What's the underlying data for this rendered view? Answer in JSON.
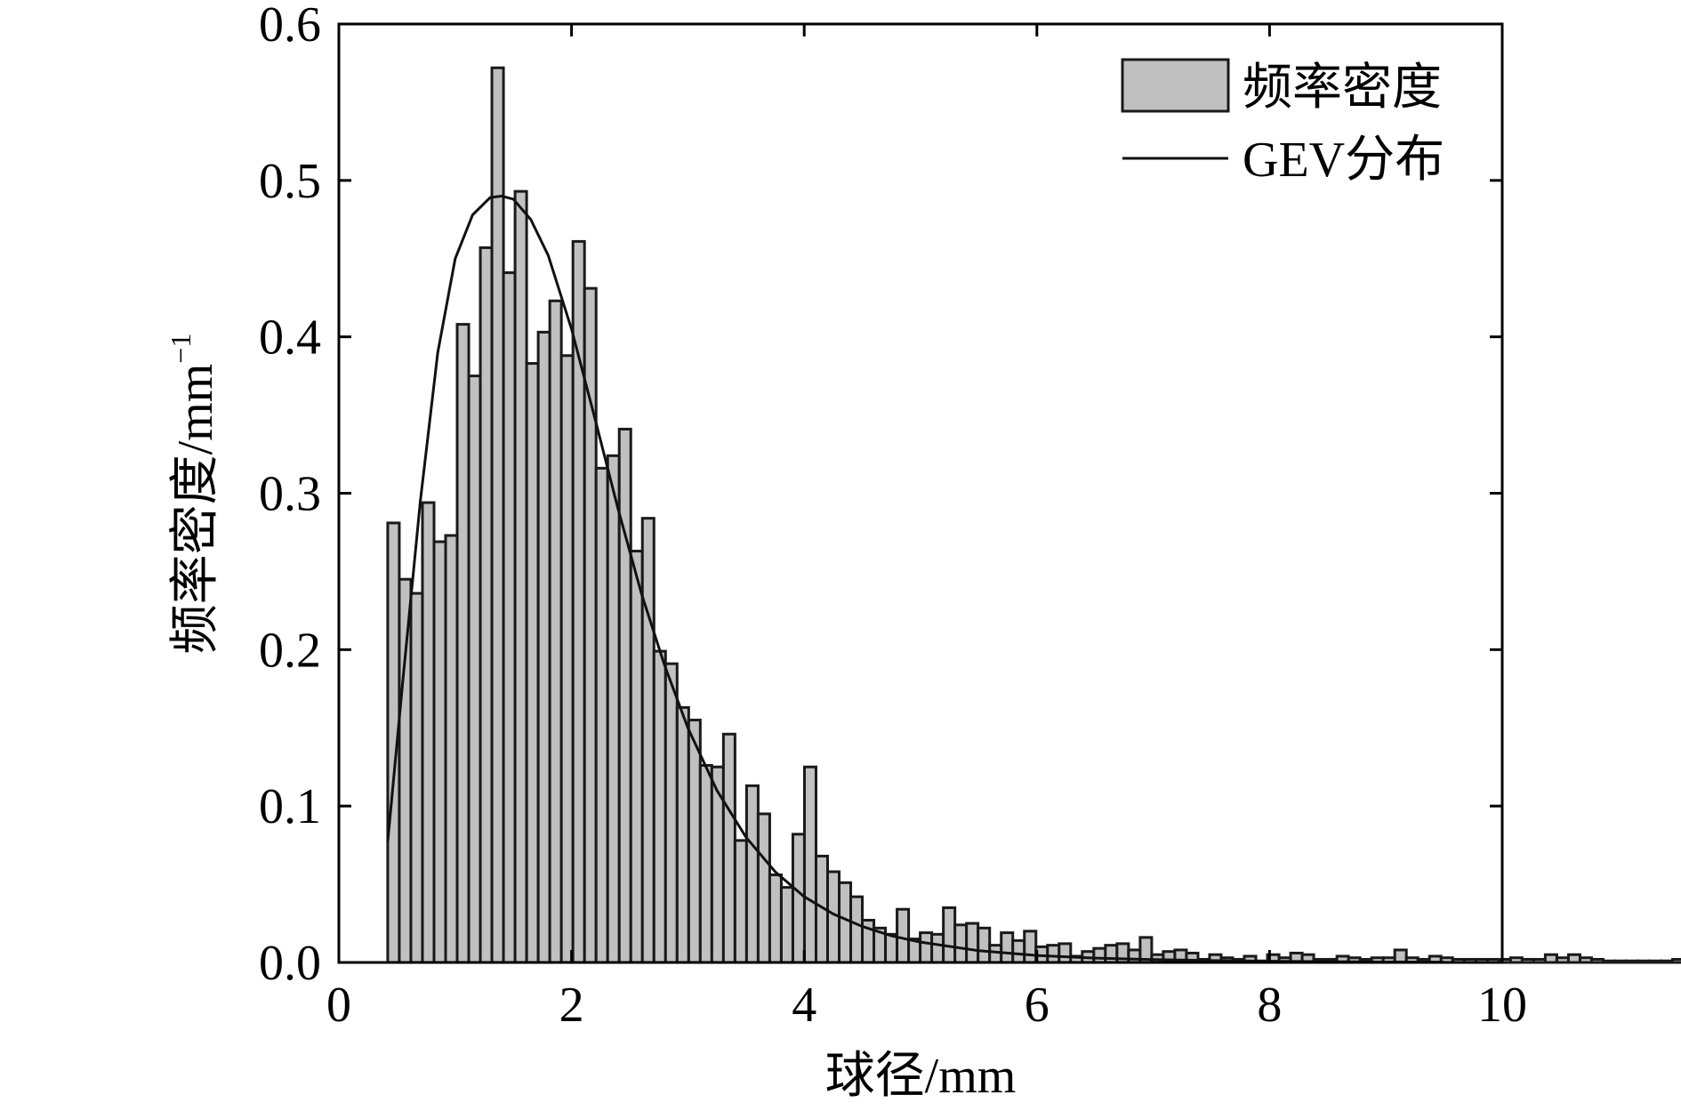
{
  "chart_data": {
    "type": "bar",
    "xlabel": "球径/mm",
    "ylabel": "频率密度/mm",
    "ylabel_superscript": "−1",
    "xlim": [
      0,
      10
    ],
    "ylim": [
      0,
      0.6
    ],
    "xticks": [
      0,
      2,
      4,
      6,
      8,
      10
    ],
    "xtick_labels": [
      "0",
      "2",
      "4",
      "6",
      "8",
      "10"
    ],
    "yticks": [
      0.0,
      0.1,
      0.2,
      0.3,
      0.4,
      0.5,
      0.6
    ],
    "ytick_labels": [
      "0.0",
      "0.1",
      "0.2",
      "0.3",
      "0.4",
      "0.5",
      "0.6"
    ],
    "legend_placement": "top-right",
    "grid": false,
    "series": [
      {
        "name": "频率密度",
        "kind": "histogram",
        "bin_start": 0.42,
        "bin_width": 0.0995,
        "values": [
          0.281,
          0.245,
          0.236,
          0.294,
          0.269,
          0.273,
          0.408,
          0.375,
          0.457,
          0.572,
          0.441,
          0.493,
          0.383,
          0.403,
          0.423,
          0.388,
          0.461,
          0.431,
          0.316,
          0.324,
          0.341,
          0.263,
          0.284,
          0.199,
          0.191,
          0.163,
          0.155,
          0.126,
          0.125,
          0.146,
          0.078,
          0.113,
          0.095,
          0.056,
          0.048,
          0.082,
          0.125,
          0.068,
          0.058,
          0.051,
          0.042,
          0.027,
          0.022,
          0.018,
          0.034,
          0.015,
          0.019,
          0.018,
          0.035,
          0.024,
          0.025,
          0.022,
          0.011,
          0.019,
          0.014,
          0.02,
          0.01,
          0.011,
          0.012,
          0.004,
          0.007,
          0.009,
          0.011,
          0.012,
          0.008,
          0.016,
          0.005,
          0.007,
          0.008,
          0.006,
          0.002,
          0.005,
          0.003,
          0.002,
          0.004,
          0.001,
          0.005,
          0.003,
          0.006,
          0.005,
          0.002,
          0.002,
          0.004,
          0.003,
          0.002,
          0.003,
          0.003,
          0.008,
          0.003,
          0.002,
          0.004,
          0.003,
          0.002,
          0.002,
          0.002,
          0.002,
          0.002,
          0.003,
          0.002,
          0.002,
          0.005,
          0.003,
          0.005,
          0.003,
          0.002,
          0.001,
          0.001,
          0.001,
          0.001,
          0.001,
          0.001,
          0.002,
          0.001,
          0.001,
          0.001,
          0.001,
          0.001,
          0.001,
          0.001,
          0.001,
          0.004,
          0.001,
          0.001,
          0.001,
          0.001,
          0.001,
          0.001,
          0.001,
          0.001,
          0.001,
          0.001,
          0.001,
          0.005
        ]
      },
      {
        "name": "GEV分布",
        "kind": "line",
        "x": [
          0.42,
          0.55,
          0.7,
          0.85,
          1.0,
          1.15,
          1.3,
          1.4,
          1.5,
          1.65,
          1.8,
          2.0,
          2.2,
          2.4,
          2.6,
          2.8,
          3.0,
          3.25,
          3.5,
          3.75,
          4.0,
          4.25,
          4.5,
          4.75,
          5.0,
          5.5,
          6.0,
          6.5,
          7.0,
          7.5,
          8.0,
          8.5,
          9.0,
          9.5
        ],
        "y": [
          0.077,
          0.18,
          0.295,
          0.39,
          0.45,
          0.478,
          0.489,
          0.49,
          0.488,
          0.475,
          0.452,
          0.405,
          0.348,
          0.29,
          0.236,
          0.19,
          0.15,
          0.11,
          0.08,
          0.058,
          0.042,
          0.031,
          0.023,
          0.017,
          0.013,
          0.0075,
          0.0045,
          0.0028,
          0.0018,
          0.0012,
          0.0008,
          0.0005,
          0.0003,
          0.0002
        ]
      }
    ]
  }
}
